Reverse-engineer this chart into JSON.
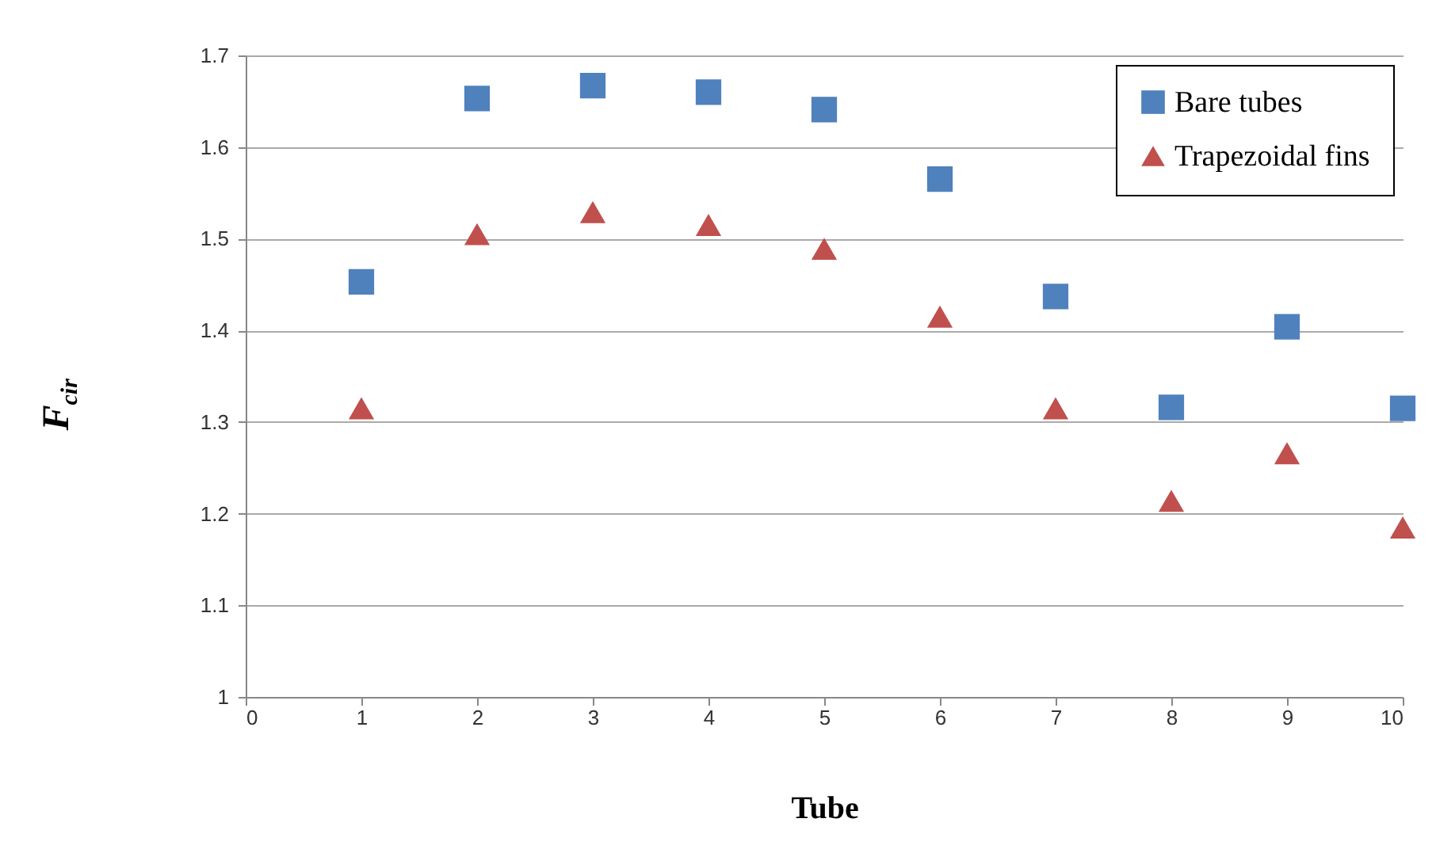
{
  "chart_data": {
    "type": "scatter",
    "xlabel": "Tube",
    "ylabel": "F$_{cir}$",
    "x": [
      1,
      2,
      3,
      4,
      5,
      6,
      7,
      8,
      9,
      10
    ],
    "series": [
      {
        "name": "Bare tubes",
        "color": "#4f81bd",
        "marker": "square",
        "values": [
          1.453,
          1.653,
          1.667,
          1.66,
          1.641,
          1.565,
          1.437,
          1.316,
          1.404,
          1.315
        ]
      },
      {
        "name": "Trapezoidal fins",
        "color": "#c0504d",
        "marker": "triangle",
        "values": [
          1.315,
          1.505,
          1.529,
          1.515,
          1.489,
          1.415,
          1.315,
          1.214,
          1.266,
          1.185
        ]
      }
    ],
    "xlim": [
      0,
      10
    ],
    "xticks": [
      0,
      1,
      2,
      3,
      4,
      5,
      6,
      7,
      8,
      9,
      10
    ],
    "ylim": [
      1,
      1.7
    ],
    "yticks": [
      1,
      1.1,
      1.2,
      1.3,
      1.4,
      1.5,
      1.6,
      1.7
    ],
    "grid": "y",
    "legend": "top right"
  }
}
